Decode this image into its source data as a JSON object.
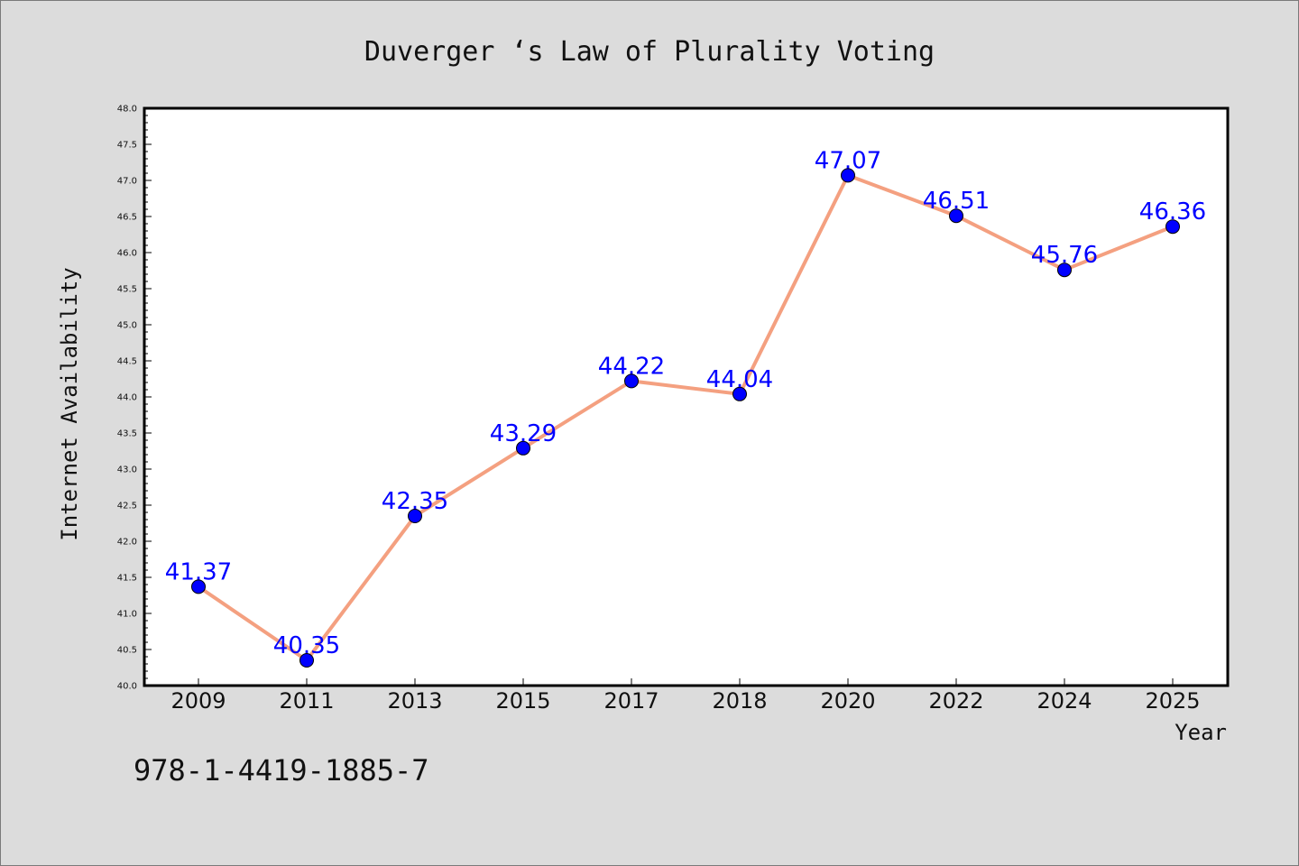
{
  "chart_data": {
    "type": "line",
    "title": "Duverger ‘s Law of Plurality Voting",
    "xlabel": "Year",
    "ylabel": "Internet Availability",
    "categories": [
      "2009",
      "2011",
      "2013",
      "2015",
      "2017",
      "2018",
      "2020",
      "2022",
      "2024",
      "2025"
    ],
    "series": [
      {
        "values": [
          41.37,
          40.35,
          42.35,
          43.29,
          44.22,
          44.04,
          47.07,
          46.51,
          45.76,
          46.36
        ],
        "data_labels": [
          "41.37",
          "40.35",
          "42.35",
          "43.29",
          "44.22",
          "44.04",
          "47.07",
          "46.51",
          "45.76",
          "46.36"
        ]
      }
    ],
    "ylim": [
      40.0,
      48.0
    ],
    "yticks": [
      "40.0",
      "40.5",
      "41.0",
      "41.5",
      "42.0",
      "42.5",
      "43.0",
      "43.5",
      "44.0",
      "44.5",
      "45.0",
      "45.5",
      "46.0",
      "46.5",
      "47.0",
      "47.5",
      "48.0"
    ],
    "grid": false,
    "line_color": "#f4a080",
    "marker_color": "#0000ff",
    "label_color": "#0000ff",
    "plot_background": "#ffffff",
    "figure_background": "#dcdcdc"
  },
  "footer_text": "978-1-4419-1885-7"
}
